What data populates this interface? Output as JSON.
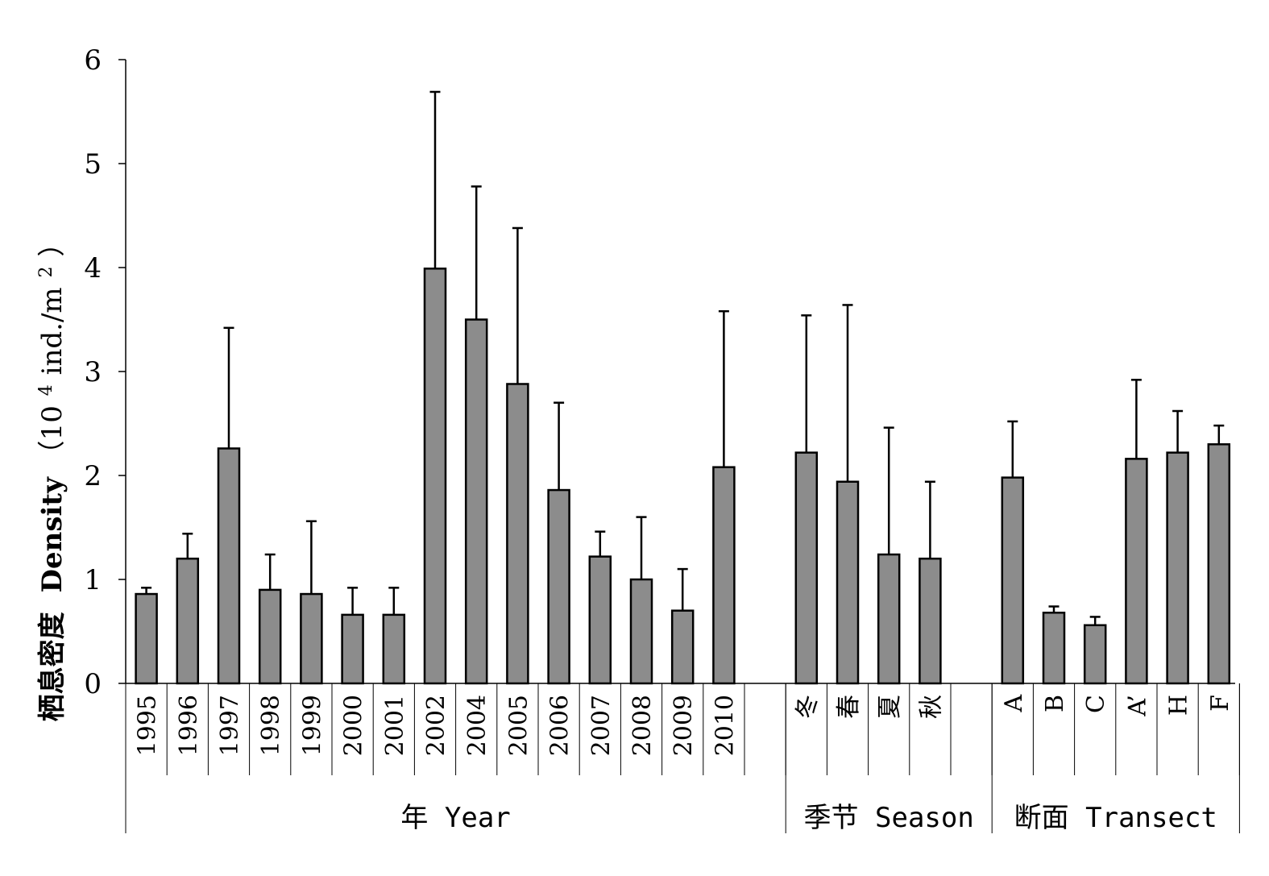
{
  "chart_data": {
    "type": "bar",
    "ylabel": {
      "cn": "栖息密度",
      "en": "Density",
      "unit_open": "（10",
      "unit_sup": "4",
      "unit_mid": " ind./m",
      "unit_sup2": "2",
      "unit_close": "）"
    },
    "ylim": [
      0,
      6
    ],
    "yticks": [
      "0",
      "1",
      "2",
      "3",
      "4",
      "5",
      "6"
    ],
    "grid": false,
    "bar_color": "#8c8c8c",
    "groups": [
      {
        "label": "年 Year",
        "categories": [
          "1995",
          "1996",
          "1997",
          "1998",
          "1999",
          "2000",
          "2001",
          "2002",
          "2004",
          "2005",
          "2006",
          "2007",
          "2008",
          "2009",
          "2010",
          ""
        ],
        "values": [
          0.86,
          1.2,
          2.26,
          0.9,
          0.86,
          0.66,
          0.66,
          3.99,
          3.5,
          2.88,
          1.86,
          1.22,
          1.0,
          0.7,
          2.08,
          null
        ],
        "errors": [
          0.06,
          0.24,
          1.16,
          0.34,
          0.7,
          0.26,
          0.26,
          1.7,
          1.28,
          1.5,
          0.84,
          0.24,
          0.6,
          0.4,
          1.5,
          null
        ]
      },
      {
        "label": "季节 Season",
        "categories": [
          "冬",
          "春",
          "夏",
          "秋",
          ""
        ],
        "values": [
          2.22,
          1.94,
          1.24,
          1.2,
          null
        ],
        "errors": [
          1.32,
          1.7,
          1.22,
          0.74,
          null
        ]
      },
      {
        "label": "断面 Transect",
        "categories": [
          "A",
          "B",
          "C",
          "A’",
          "H",
          "F"
        ],
        "values": [
          1.98,
          0.68,
          0.56,
          2.16,
          2.22,
          2.3
        ],
        "errors": [
          0.54,
          0.06,
          0.08,
          0.76,
          0.4,
          0.18
        ]
      }
    ]
  }
}
